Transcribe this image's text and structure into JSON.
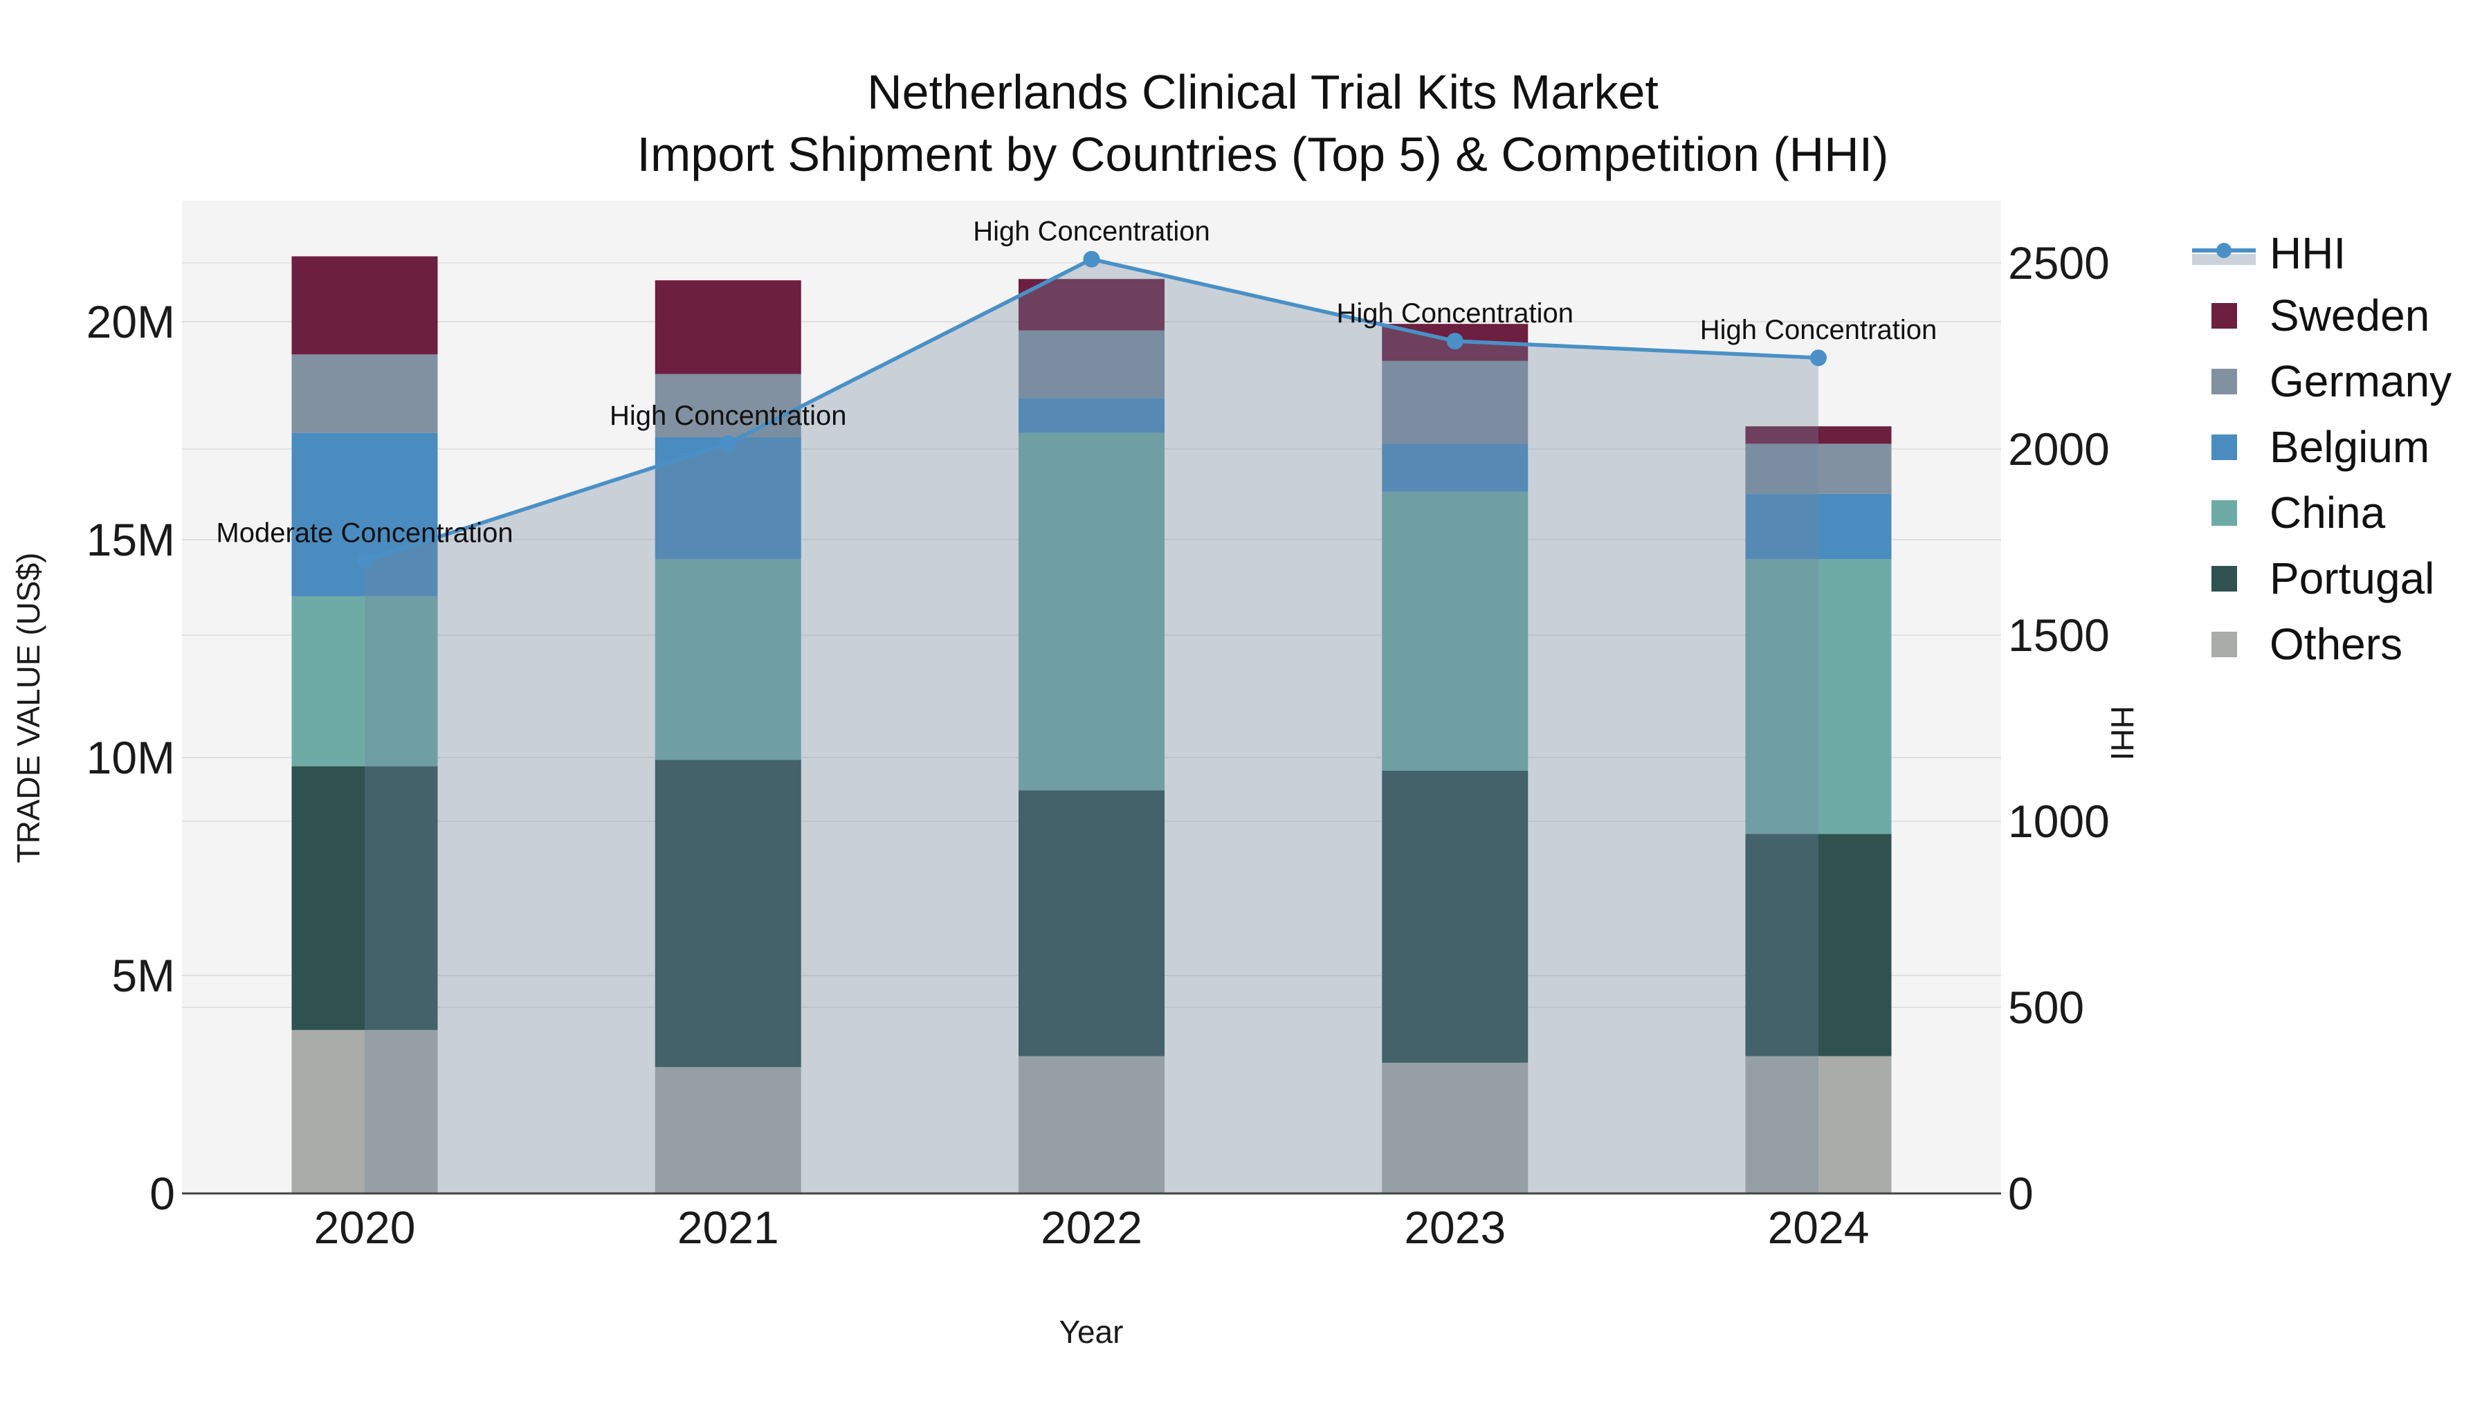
{
  "title": {
    "line1": "Netherlands Clinical Trial Kits Market",
    "line2": "Import Shipment by Countries (Top 5) & Competition (HHI)"
  },
  "axes": {
    "x": {
      "label": "Year",
      "ticks": [
        "2020",
        "2021",
        "2022",
        "2023",
        "2024"
      ]
    },
    "y_left": {
      "label": "TRADE VALUE (US$)",
      "ticks": [
        "0",
        "5M",
        "10M",
        "15M",
        "20M"
      ],
      "tick_values_millions": [
        0,
        5,
        10,
        15,
        20
      ]
    },
    "y_right": {
      "label": "HHI",
      "ticks": [
        "0",
        "500",
        "1000",
        "1500",
        "2000",
        "2500"
      ],
      "tick_values": [
        0,
        500,
        1000,
        1500,
        2000,
        2500
      ]
    }
  },
  "legend": {
    "items": [
      {
        "label": "HHI",
        "type": "line",
        "color": "#4a90c6",
        "band_color": "#ccd2da"
      },
      {
        "label": "Sweden",
        "type": "square",
        "color": "#6d1f3f"
      },
      {
        "label": "Germany",
        "type": "square",
        "color": "#8191a1"
      },
      {
        "label": "Belgium",
        "type": "square",
        "color": "#4a8cc0"
      },
      {
        "label": "China",
        "type": "square",
        "color": "#6faba6"
      },
      {
        "label": "Portugal",
        "type": "square",
        "color": "#2f5150"
      },
      {
        "label": "Others",
        "type": "square",
        "color": "#a9aca9"
      }
    ]
  },
  "chart_data": {
    "type": "stacked-bar+line",
    "title": "Netherlands Clinical Trial Kits Market — Import Shipment by Countries (Top 5) & Competition (HHI)",
    "xlabel": "Year",
    "ylabel_left": "TRADE VALUE (US$)",
    "ylabel_right": "HHI",
    "categories": [
      "2020",
      "2021",
      "2022",
      "2023",
      "2024"
    ],
    "bar_unit": "million US$",
    "bar_series": [
      {
        "name": "Sweden",
        "color": "#6d1f3f",
        "values": [
          2.25,
          2.15,
          1.18,
          0.85,
          0.4
        ]
      },
      {
        "name": "Germany",
        "color": "#8191a1",
        "values": [
          1.8,
          1.45,
          1.55,
          1.9,
          1.15
        ]
      },
      {
        "name": "Belgium",
        "color": "#4a8cc0",
        "values": [
          3.75,
          2.8,
          0.8,
          1.1,
          1.5
        ]
      },
      {
        "name": "China",
        "color": "#6faba6",
        "values": [
          3.9,
          4.6,
          8.2,
          6.4,
          6.3
        ]
      },
      {
        "name": "Portugal",
        "color": "#2f5150",
        "values": [
          6.05,
          7.05,
          6.1,
          6.7,
          5.1
        ]
      },
      {
        "name": "Others",
        "color": "#a9aca9",
        "values": [
          3.75,
          2.9,
          3.15,
          3.0,
          3.15
        ]
      }
    ],
    "stack_order": "bottom-to-top is reverse of bar_series list",
    "line_series": {
      "name": "HHI",
      "axis": "right",
      "color": "#4a90c6",
      "area_fill": "rgba(113,134,158,0.32)",
      "values": [
        1700,
        2015,
        2510,
        2290,
        2245
      ]
    },
    "annotations": [
      {
        "year": "2020",
        "text": "Moderate Concentration"
      },
      {
        "year": "2021",
        "text": "High Concentration"
      },
      {
        "year": "2022",
        "text": "High Concentration"
      },
      {
        "year": "2023",
        "text": "High Concentration"
      },
      {
        "year": "2024",
        "text": "High Concentration"
      }
    ],
    "ylim_left_millions": [
      0,
      22.8
    ],
    "ylim_right": [
      0,
      2667
    ],
    "grid": true,
    "plot_background": "#f4f4f4",
    "legend_position": "outside-right"
  }
}
